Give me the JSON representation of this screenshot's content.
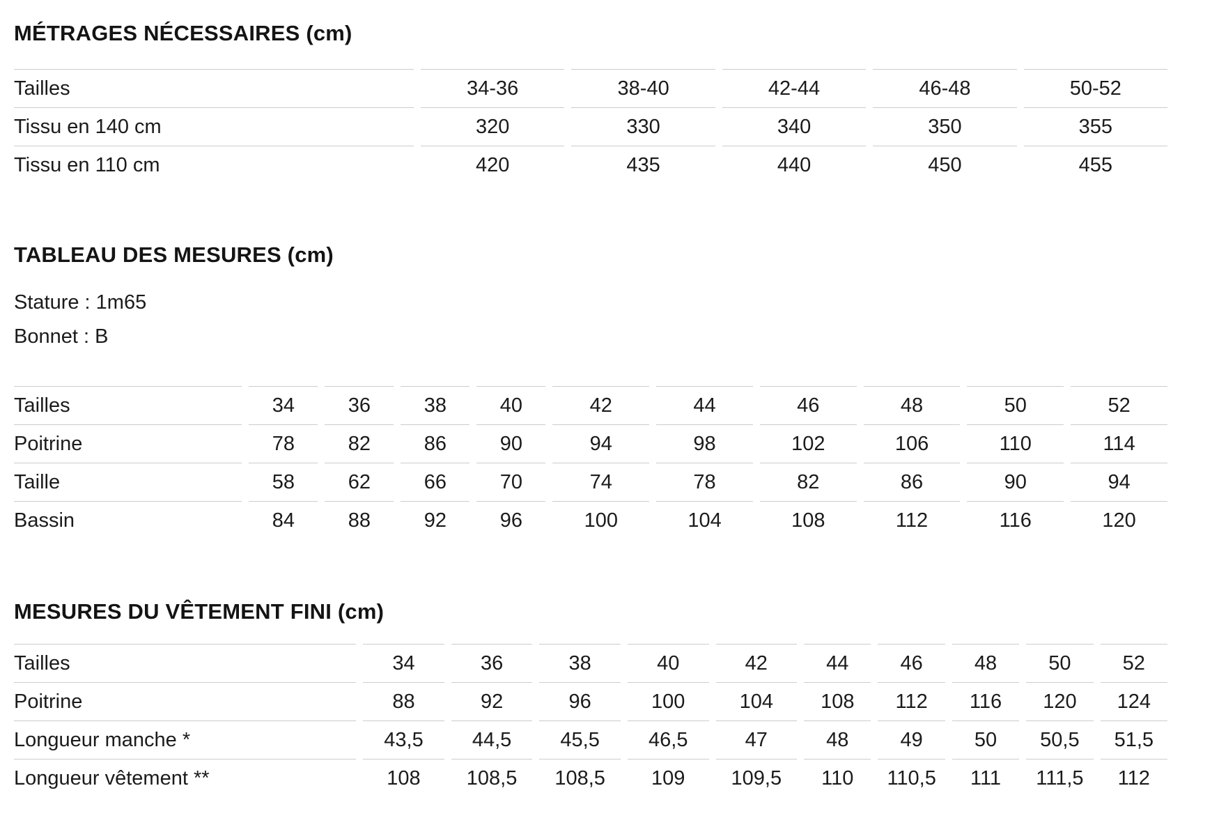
{
  "page": {
    "background": "#ffffff",
    "text_color": "#1b1b1b",
    "border_color": "#cccccc"
  },
  "sections": [
    {
      "title": "MÉTRAGES NÉCESSAIRES (cm)",
      "table": {
        "rows": [
          {
            "label": "Tailles",
            "values": [
              "34-36",
              "38-40",
              "42-44",
              "46-48",
              "50-52"
            ]
          },
          {
            "label": "Tissu en 140 cm",
            "values": [
              "320",
              "330",
              "340",
              "350",
              "355"
            ]
          },
          {
            "label": "Tissu en 110 cm",
            "values": [
              "420",
              "435",
              "440",
              "450",
              "455"
            ]
          }
        ]
      }
    },
    {
      "title": "TABLEAU DES MESURES (cm)",
      "notes": [
        "Stature : 1m65",
        "Bonnet : B"
      ],
      "table": {
        "rows": [
          {
            "label": "Tailles",
            "values": [
              "34",
              "36",
              "38",
              "40",
              "42",
              "44",
              "46",
              "48",
              "50",
              "52"
            ]
          },
          {
            "label": "Poitrine",
            "values": [
              "78",
              "82",
              "86",
              "90",
              "94",
              "98",
              "102",
              "106",
              "110",
              "114"
            ]
          },
          {
            "label": "Taille",
            "values": [
              "58",
              "62",
              "66",
              "70",
              "74",
              "78",
              "82",
              "86",
              "90",
              "94"
            ]
          },
          {
            "label": "Bassin",
            "values": [
              "84",
              "88",
              "92",
              "96",
              "100",
              "104",
              "108",
              "112",
              "116",
              "120"
            ]
          }
        ]
      }
    },
    {
      "title": "MESURES DU VÊTEMENT FINI (cm)",
      "table": {
        "rows": [
          {
            "label": "Tailles",
            "values": [
              "34",
              "36",
              "38",
              "40",
              "42",
              "44",
              "46",
              "48",
              "50",
              "52"
            ]
          },
          {
            "label": "Poitrine",
            "values": [
              "88",
              "92",
              "96",
              "100",
              "104",
              "108",
              "112",
              "116",
              "120",
              "124"
            ]
          },
          {
            "label": "Longueur manche *",
            "values": [
              "43,5",
              "44,5",
              "45,5",
              "46,5",
              "47",
              "48",
              "49",
              "50",
              "50,5",
              "51,5"
            ]
          },
          {
            "label": "Longueur vêtement **",
            "values": [
              "108",
              "108,5",
              "108,5",
              "109",
              "109,5",
              "110",
              "110,5",
              "111",
              "111,5",
              "112"
            ]
          }
        ]
      }
    }
  ]
}
